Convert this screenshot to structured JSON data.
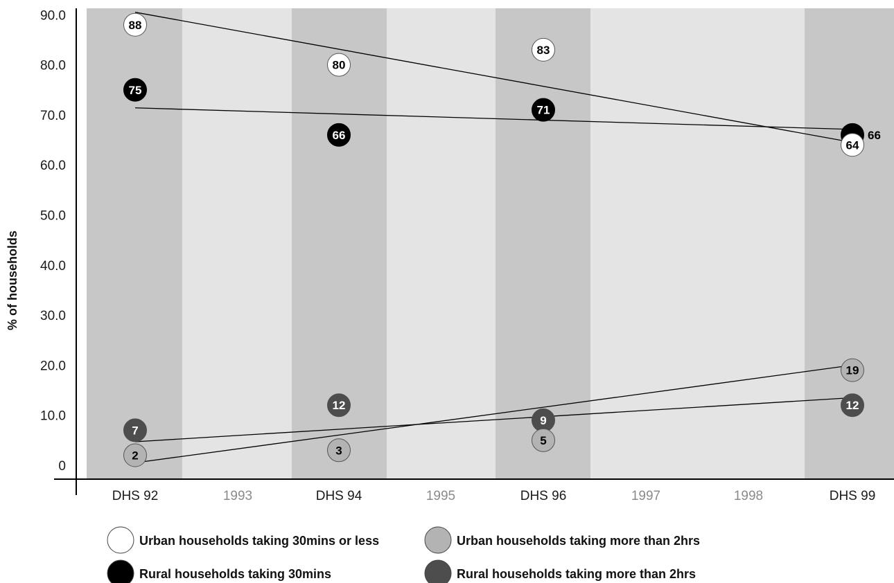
{
  "chart_data": {
    "type": "scatter",
    "ylabel": "% of households",
    "xlabel": "",
    "ylim": [
      0,
      90
    ],
    "yticks": [
      "0",
      "10.0",
      "20.0",
      "30.0",
      "40.0",
      "50.0",
      "60.0",
      "70.0",
      "80.0",
      "90.0"
    ],
    "categories": [
      "DHS 92",
      "1993",
      "DHS 94",
      "1995",
      "DHS 96",
      "1997",
      "1998",
      "DHS 99"
    ],
    "survey_categories": [
      "DHS 92",
      "DHS 94",
      "DHS 96",
      "DHS 99"
    ],
    "grid": false,
    "legend_position": "bottom",
    "series": [
      {
        "name": "Urban households taking 30mins or less",
        "fill": "#ffffff",
        "text_color": "#000000",
        "points": [
          {
            "x": "DHS 92",
            "y": 88
          },
          {
            "x": "DHS 94",
            "y": 80
          },
          {
            "x": "DHS 96",
            "y": 83
          },
          {
            "x": "DHS 99",
            "y": 64
          }
        ],
        "trend": {
          "start": 90.5,
          "end": 64.5
        }
      },
      {
        "name": "Rural households taking 30mins",
        "fill": "#000000",
        "text_color": "#ffffff",
        "points": [
          {
            "x": "DHS 92",
            "y": 75
          },
          {
            "x": "DHS 94",
            "y": 66
          },
          {
            "x": "DHS 96",
            "y": 71
          },
          {
            "x": "DHS 99",
            "y": 66
          }
        ],
        "trend": {
          "start": 71.4,
          "end": 67.1
        }
      },
      {
        "name": "Urban households taking more than 2hrs",
        "fill": "#b3b3b3",
        "text_color": "#000000",
        "points": [
          {
            "x": "DHS 92",
            "y": 2
          },
          {
            "x": "DHS 94",
            "y": 3
          },
          {
            "x": "DHS 96",
            "y": 5
          },
          {
            "x": "DHS 99",
            "y": 19
          }
        ],
        "trend": {
          "start": 0.5,
          "end": 20
        }
      },
      {
        "name": "Rural households taking more than 2hrs",
        "fill": "#4d4d4d",
        "text_color": "#ffffff",
        "points": [
          {
            "x": "DHS 92",
            "y": 7
          },
          {
            "x": "DHS 94",
            "y": 12
          },
          {
            "x": "DHS 96",
            "y": 9
          },
          {
            "x": "DHS 99",
            "y": 12
          }
        ],
        "trend": {
          "start": 4.7,
          "end": 13.5
        }
      }
    ]
  }
}
